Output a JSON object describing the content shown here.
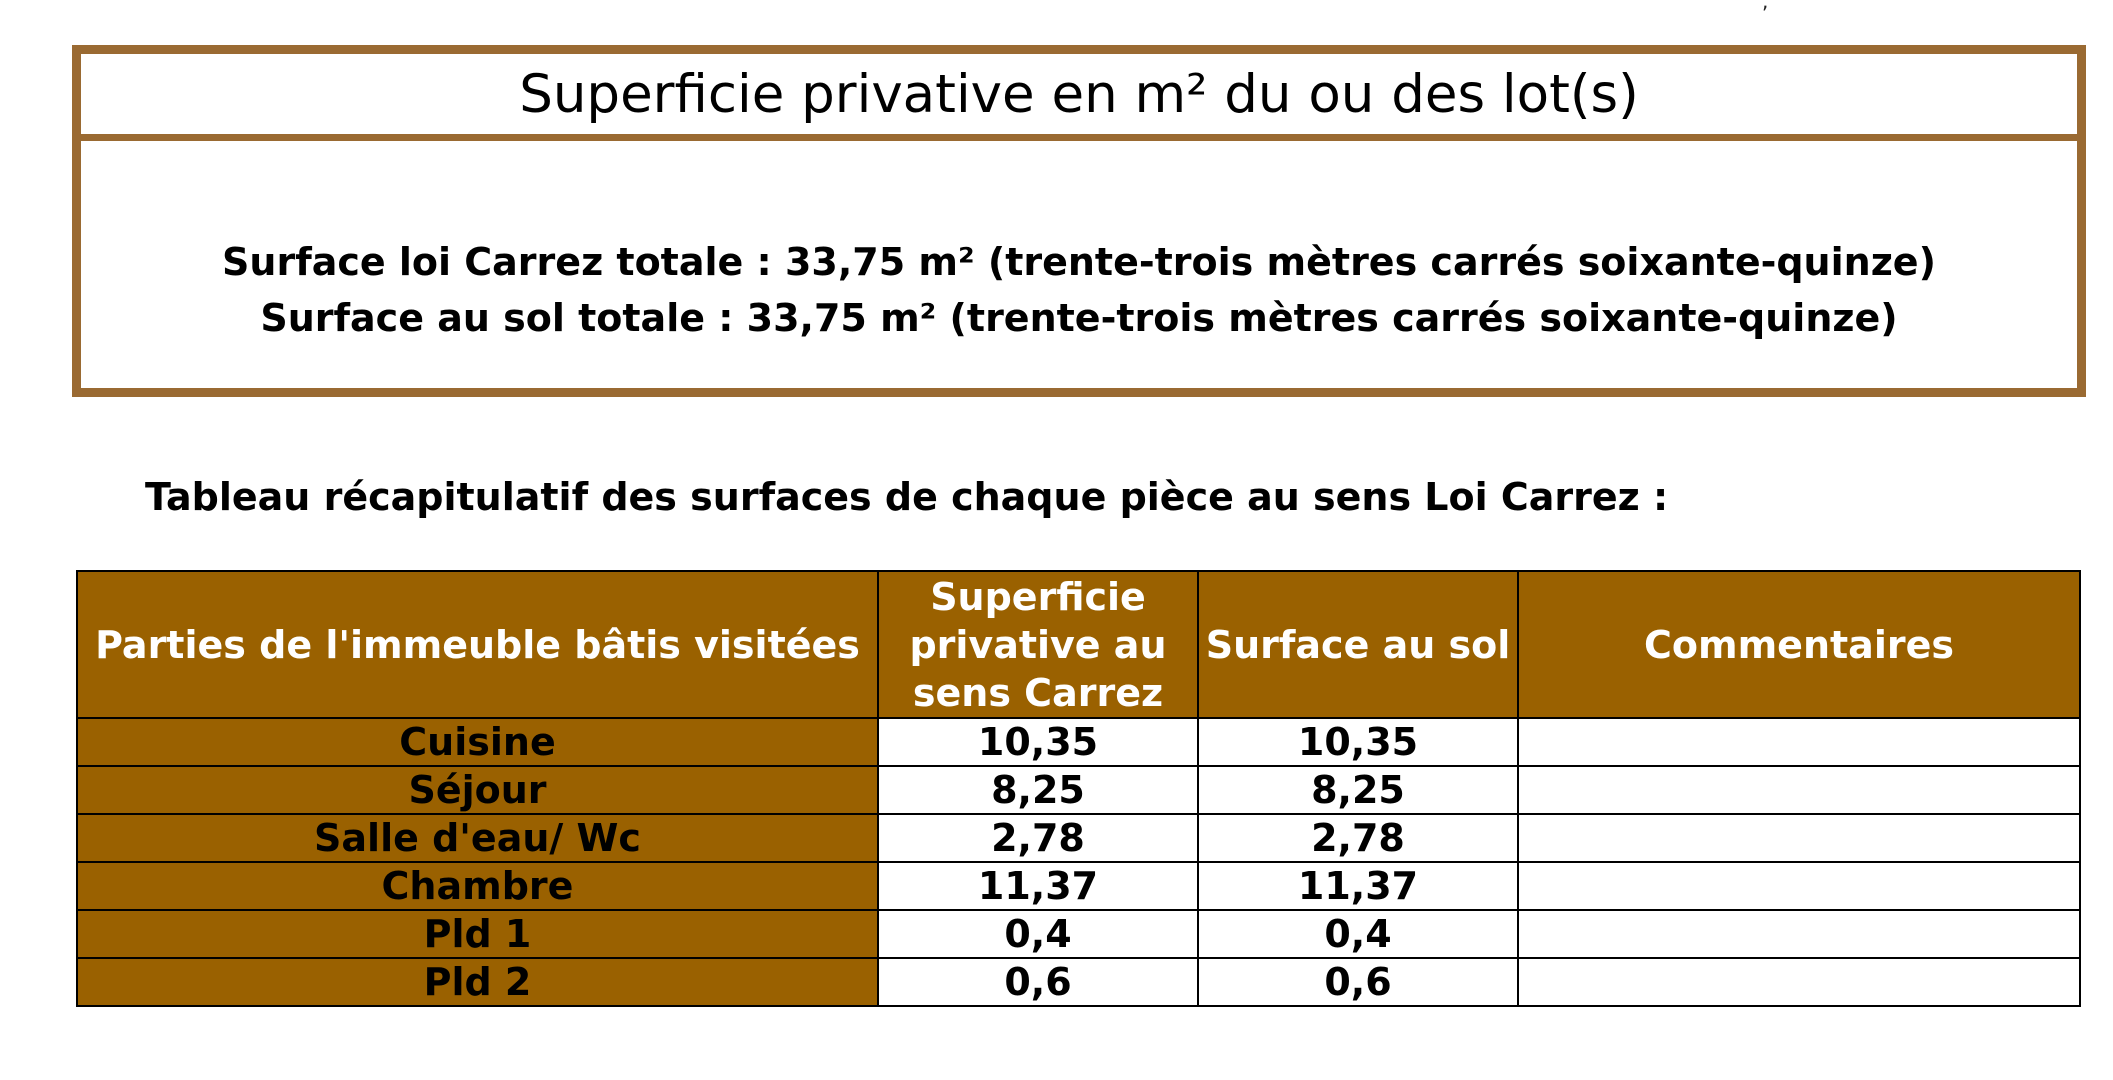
{
  "summary_box": {
    "title": "Superficie privative en m² du ou des lot(s)",
    "line_carrez": "Surface loi Carrez totale : 33,75 m² (trente-trois mètres carrés soixante-quinze)",
    "line_sol": "Surface au sol totale : 33,75 m² (trente-trois mètres carrés soixante-quinze)"
  },
  "table_heading": "Tableau récapitulatif des surfaces de chaque pièce au sens Loi Carrez :",
  "table": {
    "headers": [
      "Parties de l'immeuble bâtis visitées",
      "Superficie privative au sens Carrez",
      "Surface au sol",
      "Commentaires"
    ],
    "rows": [
      {
        "room": "Cuisine",
        "carrez": "10,35",
        "sol": "10,35",
        "comment": ""
      },
      {
        "room": "Séjour",
        "carrez": "8,25",
        "sol": "8,25",
        "comment": ""
      },
      {
        "room": "Salle d'eau/ Wc",
        "carrez": "2,78",
        "sol": "2,78",
        "comment": ""
      },
      {
        "room": "Chambre",
        "carrez": "11,37",
        "sol": "11,37",
        "comment": ""
      },
      {
        "room": "Pld 1",
        "carrez": "0,4",
        "sol": "0,4",
        "comment": ""
      },
      {
        "room": "Pld 2",
        "carrez": "0,6",
        "sol": "0,6",
        "comment": ""
      }
    ]
  },
  "colors": {
    "box_border": "#9a6a32",
    "table_header_bg": "#9a6100",
    "table_header_text": "#ffffff"
  }
}
